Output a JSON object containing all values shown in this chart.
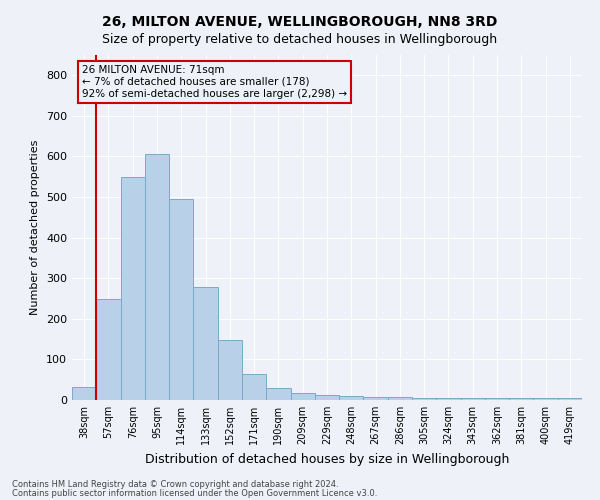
{
  "title1": "26, MILTON AVENUE, WELLINGBOROUGH, NN8 3RD",
  "title2": "Size of property relative to detached houses in Wellingborough",
  "xlabel": "Distribution of detached houses by size in Wellingborough",
  "ylabel": "Number of detached properties",
  "categories": [
    "38sqm",
    "57sqm",
    "76sqm",
    "95sqm",
    "114sqm",
    "133sqm",
    "152sqm",
    "171sqm",
    "190sqm",
    "209sqm",
    "229sqm",
    "248sqm",
    "267sqm",
    "286sqm",
    "305sqm",
    "324sqm",
    "343sqm",
    "362sqm",
    "381sqm",
    "400sqm",
    "419sqm"
  ],
  "bar_values": [
    32,
    248,
    550,
    605,
    495,
    278,
    148,
    63,
    30,
    18,
    12,
    10,
    8,
    7,
    6,
    5,
    5,
    5,
    5,
    5,
    5
  ],
  "bar_color": "#b8d0e8",
  "bar_edge_color": "#7aaac8",
  "vline_x": 1.0,
  "vline_color": "#cc0000",
  "annotation_text_line1": "26 MILTON AVENUE: 71sqm",
  "annotation_text_line2": "← 7% of detached houses are smaller (178)",
  "annotation_text_line3": "92% of semi-detached houses are larger (2,298) →",
  "annotation_box_color": "#cc0000",
  "ylim": [
    0,
    850
  ],
  "yticks": [
    0,
    100,
    200,
    300,
    400,
    500,
    600,
    700,
    800
  ],
  "footer1": "Contains HM Land Registry data © Crown copyright and database right 2024.",
  "footer2": "Contains public sector information licensed under the Open Government Licence v3.0.",
  "background_color": "#eef2f8",
  "grid_color": "#ffffff",
  "title1_fontsize": 10,
  "title2_fontsize": 9,
  "xlabel_fontsize": 9,
  "ylabel_fontsize": 8,
  "xtick_fontsize": 7,
  "ytick_fontsize": 8,
  "ann_fontsize": 7.5,
  "footer_fontsize": 6
}
